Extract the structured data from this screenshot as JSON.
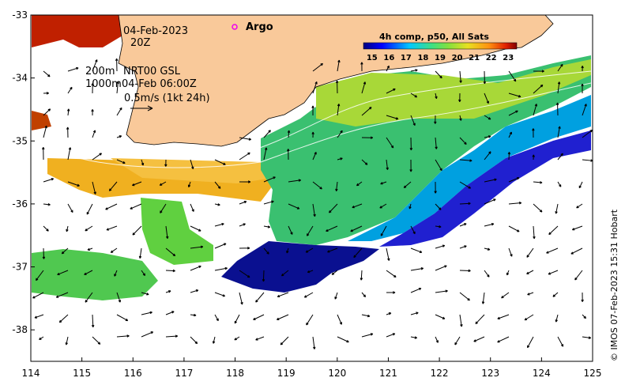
{
  "map": {
    "date_line1": "04-Feb-2023",
    "date_line2": "20Z",
    "depth1": "200m",
    "depth2": "1000m",
    "product": "NRT00 GSL",
    "product_time": "04-Feb 06:00Z",
    "scale_label": "0.5m/s (1kt 24h)",
    "argo_label": "Argo",
    "credit": "© IMOS 07-Feb-2023 15:31 Hobart",
    "lon_ticks": [
      "114",
      "115",
      "116",
      "117",
      "118",
      "119",
      "120",
      "121",
      "122",
      "123",
      "124",
      "125"
    ],
    "lat_ticks": [
      "-33",
      "-34",
      "-35",
      "-36",
      "-37",
      "-38"
    ],
    "lon_range": [
      114,
      125
    ],
    "lat_range": [
      -38.5,
      -33
    ]
  },
  "colorbar": {
    "title": "4h comp, p50, All Sats",
    "labels": [
      "15",
      "16",
      "17",
      "18",
      "19",
      "20",
      "21",
      "22",
      "23"
    ],
    "range": [
      14.5,
      23.5
    ]
  },
  "colors": {
    "land": "#f9c99a",
    "coast": "#000000",
    "argo": "#ee00ee"
  }
}
